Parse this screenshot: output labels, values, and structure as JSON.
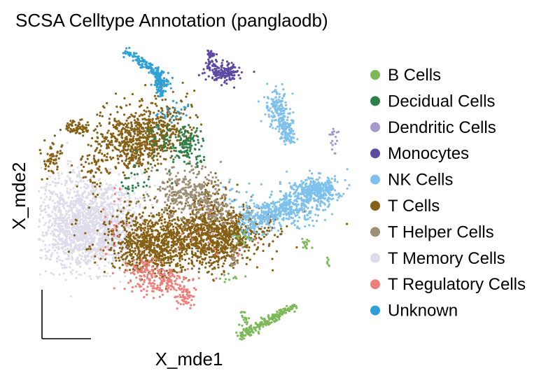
{
  "chart_data": {
    "type": "scatter",
    "title": "SCSA Celltype Annotation (panglaodb)",
    "xlabel": "X_mde1",
    "ylabel": "X_mde2",
    "axes_ticks": "none",
    "grid": false,
    "legend_placement": "right",
    "series": [
      {
        "name": "B Cells",
        "color": "#7bb959"
      },
      {
        "name": "Decidual Cells",
        "color": "#2e8049"
      },
      {
        "name": "Dendritic Cells",
        "color": "#a497cd"
      },
      {
        "name": "Monocytes",
        "color": "#5e4aa0"
      },
      {
        "name": "NK Cells",
        "color": "#7ec1ec"
      },
      {
        "name": "T Cells",
        "color": "#866015"
      },
      {
        "name": "T Helper Cells",
        "color": "#9c8f75"
      },
      {
        "name": "T Memory Cells",
        "color": "#dedcea"
      },
      {
        "name": "T Regulatory Cells",
        "color": "#ee7f7b"
      },
      {
        "name": "Unknown",
        "color": "#2ea0d5"
      }
    ]
  }
}
